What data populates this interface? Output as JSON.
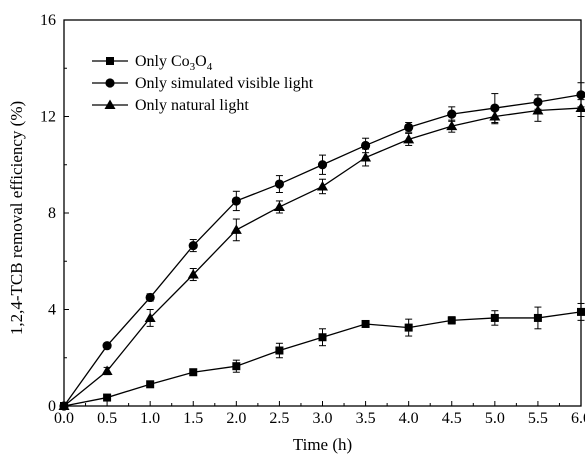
{
  "chart_data": {
    "type": "line",
    "title": "",
    "xlabel": "Time (h)",
    "ylabel": "1,2,4-TCB removal efficiency (%)",
    "xlim": [
      0,
      6
    ],
    "ylim": [
      0,
      16
    ],
    "x_ticks": [
      "0.0",
      "0.5",
      "1.0",
      "1.5",
      "2.0",
      "2.5",
      "3.0",
      "3.5",
      "4.0",
      "4.5",
      "5.0",
      "5.5",
      "6.0"
    ],
    "y_ticks": [
      "0",
      "4",
      "8",
      "12",
      "16"
    ],
    "x": [
      0,
      0.5,
      1.0,
      1.5,
      2.0,
      2.5,
      3.0,
      3.5,
      4.0,
      4.5,
      5.0,
      5.5,
      6.0
    ],
    "legend_position": "top-left",
    "grid": false,
    "series": [
      {
        "name_parts": [
          "Only Co",
          "3",
          "O",
          "4"
        ],
        "marker": "square",
        "values": [
          0,
          0.35,
          0.9,
          1.4,
          1.65,
          2.3,
          2.85,
          3.4,
          3.25,
          3.55,
          3.65,
          3.65,
          3.9
        ],
        "errors": [
          0,
          0.1,
          0.1,
          0.1,
          0.25,
          0.3,
          0.35,
          0.1,
          0.35,
          0.15,
          0.3,
          0.45,
          0.35
        ]
      },
      {
        "name": "Only simulated visible light",
        "marker": "circle",
        "values": [
          0,
          2.5,
          4.5,
          6.65,
          8.5,
          9.2,
          10.0,
          10.8,
          11.55,
          12.1,
          12.35,
          12.6,
          12.9
        ],
        "errors": [
          0,
          0.1,
          0.15,
          0.25,
          0.4,
          0.35,
          0.4,
          0.3,
          0.2,
          0.3,
          0.6,
          0.3,
          0.5
        ]
      },
      {
        "name": "Only natural light",
        "marker": "triangle",
        "values": [
          0,
          1.45,
          3.65,
          5.45,
          7.3,
          8.25,
          9.1,
          10.3,
          11.05,
          11.6,
          12.0,
          12.25,
          12.35
        ],
        "errors": [
          0,
          0.15,
          0.35,
          0.25,
          0.45,
          0.25,
          0.3,
          0.35,
          0.25,
          0.25,
          0.3,
          0.45,
          0.35
        ]
      }
    ]
  }
}
